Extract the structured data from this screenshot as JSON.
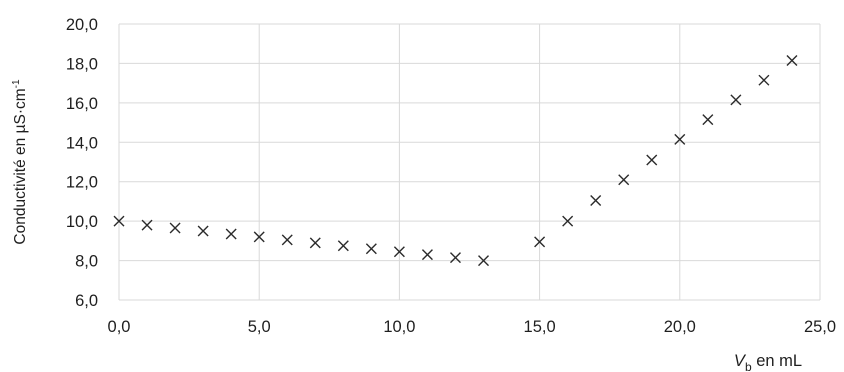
{
  "chart_data": {
    "type": "scatter",
    "title": "",
    "ylabel": "Conductivité en µS·cm",
    "ylabel_sup": "-1",
    "xlabel_var": "V",
    "xlabel_sub": "b",
    "xlabel_unit": " en mL",
    "xlim": [
      0,
      25
    ],
    "ylim": [
      6,
      20
    ],
    "x_ticks": [
      0,
      5,
      10,
      15,
      20,
      25
    ],
    "x_tick_labels": [
      "0,0",
      "5,0",
      "10,0",
      "15,0",
      "20,0",
      "25,0"
    ],
    "y_ticks": [
      6,
      8,
      10,
      12,
      14,
      16,
      18,
      20
    ],
    "y_tick_labels": [
      "6,0",
      "8,0",
      "10,0",
      "12,0",
      "14,0",
      "16,0",
      "18,0",
      "20,0"
    ],
    "grid": true,
    "marker": "x",
    "series": [
      {
        "x": [
          0,
          1,
          2,
          3,
          4,
          5,
          6,
          7,
          8,
          9,
          10,
          11,
          12,
          13,
          15,
          16,
          17,
          18,
          19,
          20,
          21,
          22,
          23,
          24
        ],
        "y": [
          10.0,
          9.8,
          9.65,
          9.5,
          9.35,
          9.2,
          9.05,
          8.9,
          8.75,
          8.6,
          8.45,
          8.3,
          8.15,
          8.0,
          8.95,
          10.0,
          11.05,
          12.1,
          13.1,
          14.15,
          15.15,
          16.15,
          17.15,
          18.15
        ]
      }
    ]
  }
}
